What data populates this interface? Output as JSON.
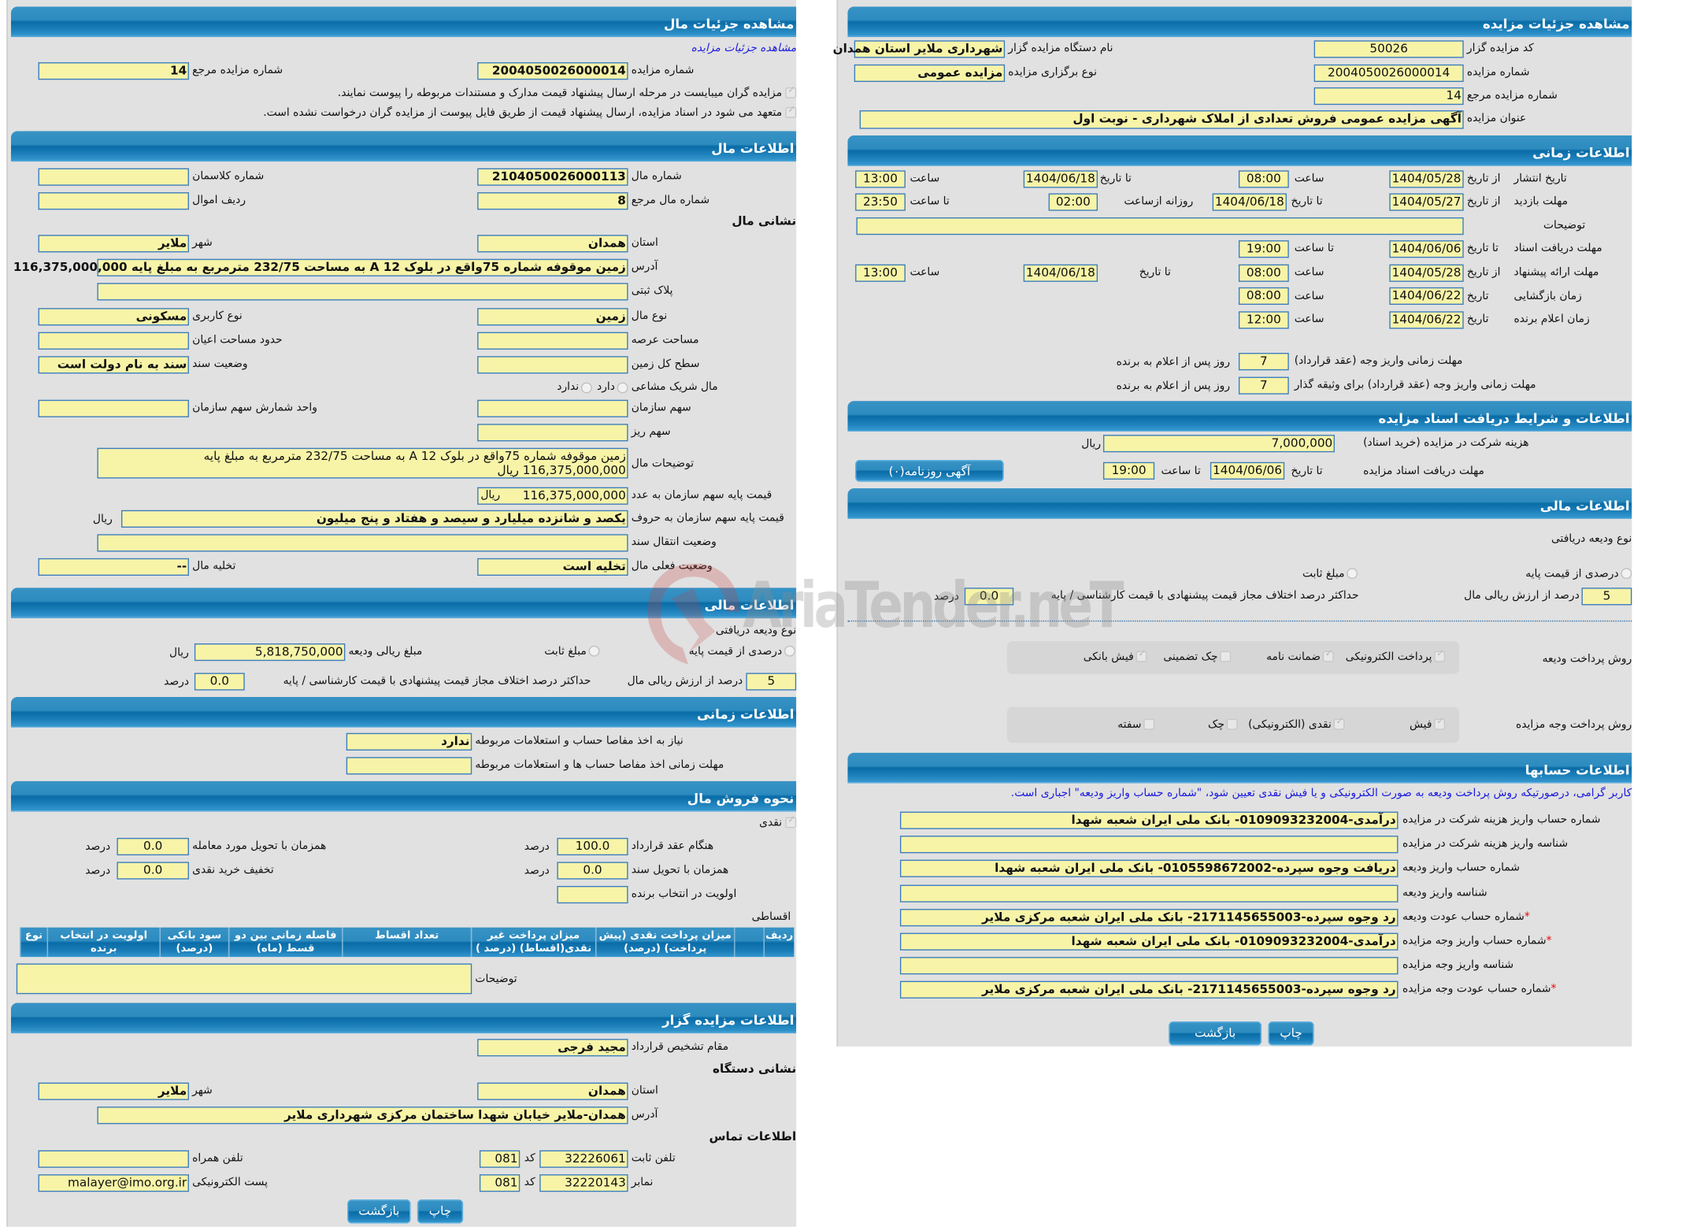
{
  "left": {
    "title": "مشاهده جزئیات مال",
    "auction_link": "مشاهده جزئیات مزایده",
    "auction_number": {
      "label": "شماره مزایده",
      "value": "2004050026000014"
    },
    "auction_ref": {
      "label": "شماره مزایده مرجع",
      "value": "14"
    },
    "notes": [
      "مزایده گران میبایست در مرحله ارسال پیشنهاد قیمت مدارک و مستندات مربوطه را پیوست نمایند.",
      "متعهد می شود در اسناد مزایده، ارسال پیشنهاد قیمت از طریق فایل پیوست از مزایده گران درخواست نشده است."
    ],
    "asset": {
      "title": "اطلاعات مال",
      "number": {
        "label": "شماره مال",
        "value": "2104050026000113"
      },
      "class_number": {
        "label": "شماره کلاسمان",
        "value": ""
      },
      "ref_number": {
        "label": "شماره مال مرجع",
        "value": "8"
      },
      "row": {
        "label": "ردیف اموال",
        "value": ""
      },
      "address_title": "نشانی مال",
      "province": {
        "label": "استان",
        "value": "همدان"
      },
      "city": {
        "label": "شهر",
        "value": "ملایر"
      },
      "address": {
        "label": "آدرس",
        "value": "زمین موقوفه شماره 75واقع در بلوک 12 A به مساحت 232/75 مترمربع به مبلغ پایه 116,375,000,000"
      },
      "registration_plate": {
        "label": "پلاک ثبتی",
        "value": ""
      },
      "asset_type": {
        "label": "نوع مال",
        "value": "زمین"
      },
      "usage_type": {
        "label": "نوع کاربری",
        "value": "مسکونی"
      },
      "land_area": {
        "label": "مساحت عرصه",
        "value": ""
      },
      "building_area": {
        "label": "حدود مساحت اعیان",
        "value": ""
      },
      "total_area": {
        "label": "سطح کل زمین",
        "value": ""
      },
      "deed_status": {
        "label": "وضعیت سند",
        "value": "سند به نام دولت است"
      },
      "shared": {
        "label": "مال شریک مشاعی",
        "options": [
          "دارد",
          "ندارد"
        ]
      },
      "org_share": {
        "label": "سهم سازمان",
        "value": ""
      },
      "share_unit": {
        "label": "واحد شمارش سهم سازمان",
        "value": ""
      },
      "fine_share": {
        "label": "سهم ریز",
        "value": ""
      },
      "description": {
        "label": "توضیحات مال",
        "value": "زمین موقوفه شماره 75واقع در بلوک 12 A به مساحت 232/75 مترمربع به مبلغ پایه 116,375,000,000 ریال"
      },
      "base_price_number": {
        "label": "قیمت پایه سهم سازمان به عدد",
        "value": "116,375,000,000"
      },
      "base_price_words": {
        "label": "قیمت پایه سهم سازمان به حروف",
        "value": "یکصد و شانزده میلیارد و سیصد و هفتاد و پنج میلیون"
      },
      "currency": "ریال",
      "deed_transfer": {
        "label": "وضعیت انتقال سند",
        "value": ""
      },
      "current_status": {
        "label": "وضعیت فعلی مال",
        "value": "تخلیه است"
      },
      "evacuation": {
        "label": "تخلیه مال",
        "value": "--"
      }
    },
    "finance": {
      "title": "اطلاعات مالی",
      "deposit_type_label": "نوع ودیعه دریافتی",
      "opt_percent": "درصدی از قیمت پایه",
      "opt_fixed": "مبلغ ثابت",
      "deposit_amount": {
        "label": "مبلغ ریالی ودیعه",
        "value": "5,818,750,000"
      },
      "currency": "ریال",
      "percent": {
        "label": "درصد از ارزش ریالی مال",
        "value": "5"
      },
      "max_diff": {
        "label": "حداکثر درصد اختلاف مجاز قیمت پیشنهادی با قیمت کارشناسی / پایه",
        "value": "0.0"
      },
      "unit": "درصد"
    },
    "timing": {
      "title": "اطلاعات زمانی",
      "clearance": {
        "label": "نیاز به اخذ مفاصا حساب و استعلامات مربوطه",
        "value": "ندارد"
      },
      "clearance_deadline": {
        "label": "مهلت زمانی اخذ مفاصا حساب ها و استعلامات مربوطه",
        "value": ""
      }
    },
    "sale": {
      "title": "نحوه فروش مال",
      "cash": "نقدی",
      "at_contract": {
        "label": "هنگام عقد قرارداد",
        "value": "100.0"
      },
      "with_delivery": {
        "label": "همزمان با تحویل مورد معامله",
        "value": "0.0"
      },
      "with_deed": {
        "label": "همزمان با تحویل سند",
        "value": "0.0"
      },
      "discount": {
        "label": "تخفیف خرید نقدی",
        "value": "0.0"
      },
      "priority": {
        "label": "اولویت در انتخاب برنده",
        "value": ""
      },
      "unit": "درصد",
      "installment": "اقساطی",
      "table_headers": [
        "ردیف",
        "",
        "میزان پرداخت نقدی (پیش پرداخت) (درصد)",
        "میزان پرداخت غیر نقدی(اقساط) (درصد )",
        "تعداد اقساط",
        "فاصله زمانی بین دو قسط (ماه)",
        "سود بانکی (درصد)",
        "اولویت در انتخاب برنده",
        "نوع"
      ],
      "notes": {
        "label": "توضیحات",
        "value": ""
      }
    },
    "auctioneer": {
      "title": "اطلاعات مزایده گزار",
      "authority": {
        "label": "مقام تشخیص قرارداد",
        "value": "مجید فرجی"
      },
      "address_title": "نشانی دستگاه",
      "province": {
        "label": "استان",
        "value": "همدان"
      },
      "city": {
        "label": "شهر",
        "value": "ملایر"
      },
      "address": {
        "label": "آدرس",
        "value": "همدان-ملایر خیابان شهدا ساختمان مرکزی شهرداری ملایر"
      },
      "contact_title": "اطلاعات تماس",
      "phone": {
        "label": "تلفن ثابت",
        "value": "32226061"
      },
      "code_label": "کد",
      "phone_code": "081",
      "mobile": {
        "label": "تلفن همراه",
        "value": ""
      },
      "fax": {
        "label": "نمابر",
        "value": "32220143"
      },
      "fax_code": "081",
      "email": {
        "label": "پست الکترونیکی",
        "value": "malayer@imo.org.ir"
      }
    },
    "buttons": {
      "print": "چاپ",
      "back": "بازگشت"
    }
  },
  "right": {
    "title": "مشاهده جزئیات مزایده",
    "org_code": {
      "label": "کد مزایده گزار",
      "value": "50026"
    },
    "org_name": {
      "label": "نام دستگاه مزایده گزار",
      "value": "شهرداری ملایر استان همدان"
    },
    "auction_number": {
      "label": "شماره مزایده",
      "value": "2004050026000014"
    },
    "auction_type": {
      "label": "نوع برگزاری مزایده",
      "value": "مزایده عمومی"
    },
    "auction_ref": {
      "label": "شماره مزایده مرجع",
      "value": "14"
    },
    "subject": {
      "label": "عنوان مزایده",
      "value": "آگهی مزایده عمومی فروش تعدادی از املاک شهرداری - نوبت اول"
    },
    "timing": {
      "title": "اطلاعات زمانی",
      "from_date": "از تاریخ",
      "to_date": "تا تاریخ",
      "date": "تاریخ",
      "time": "ساعت",
      "to_time": "تا ساعت",
      "daily_from": "روزانه ازساعت",
      "publish": {
        "label": "تاریخ انتشار",
        "from": "1404/05/28",
        "from_time": "08:00",
        "to": "1404/06/18",
        "to_time": "13:00"
      },
      "visit": {
        "label": "مهلت بازدید",
        "from": "1404/05/27",
        "to": "1404/06/18",
        "daily_from": "02:00",
        "to_time": "23:50"
      },
      "description": {
        "label": "توضیحات",
        "value": ""
      },
      "docs": {
        "label": "مهلت دریافت اسناد",
        "to": "1404/06/06",
        "to_time": "19:00"
      },
      "offer": {
        "label": "مهلت ارائه پیشنهاد",
        "from": "1404/05/28",
        "from_time": "08:00",
        "to": "1404/06/18",
        "to_time": "13:00"
      },
      "opening": {
        "label": "زمان بازگشایی",
        "date": "1404/06/22",
        "time": "08:00"
      },
      "winner": {
        "label": "زمان اعلام برنده",
        "date": "1404/06/22",
        "time": "12:00"
      },
      "pay_contract": {
        "label": "مهلت زمانی واریز وجه (عقد قرارداد)",
        "value": "7"
      },
      "pay_guarantor": {
        "label": "مهلت زمانی واریز وجه (عقد قرارداد) برای وثیقه گذار",
        "value": "7"
      },
      "days_suffix": "روز پس از اعلام به برنده"
    },
    "docs": {
      "title": "اطلاعات و شرایط دریافت اسناد مزایده",
      "fee": {
        "label": "هزینه شرکت در مزایده (خرید اسناد)",
        "value": "7,000,000"
      },
      "currency": "ریال",
      "deadline": {
        "label": "مهلت دریافت اسناد مزایده",
        "to": "1404/06/06",
        "to_time": "19:00"
      },
      "to_date": "تا تاریخ",
      "to_time": "تا ساعت",
      "newspaper_button": "آگهی روزنامه(۰)"
    },
    "finance": {
      "title": "اطلاعات مالی",
      "deposit_type_label": "نوع ودیعه دریافتی",
      "opt_percent": "درصدی از قیمت پایه",
      "opt_fixed": "مبلغ ثابت",
      "percent": {
        "label": "درصد از ارزش ریالی مال",
        "value": "5"
      },
      "max_diff": {
        "label": "حداکثر درصد اختلاف مجاز قیمت پیشنهادی با قیمت کارشناسی / پایه",
        "value": "0.0"
      },
      "unit": "درصد",
      "deposit_methods": {
        "label": "روش پرداخت ودیعه",
        "items": [
          {
            "label": "پرداخت الکترونیکی",
            "checked": true
          },
          {
            "label": "ضمانت نامه",
            "checked": true
          },
          {
            "label": "چک تضمینی",
            "checked": false
          },
          {
            "label": "فیش بانکی",
            "checked": true
          }
        ]
      },
      "payment_methods": {
        "label": "روش پرداخت وجه مزایده",
        "items": [
          {
            "label": "فیش",
            "checked": true
          },
          {
            "label": "نقدی (الکترونیکی)",
            "checked": true
          },
          {
            "label": "چک",
            "checked": false
          },
          {
            "label": "سفته",
            "checked": false
          }
        ]
      }
    },
    "accounts": {
      "title": "اطلاعات حسابها",
      "notice": "کاربر گرامی، درصورتیکه روش پرداخت ودیعه به صورت الکترونیکی و یا فیش نقدی تعیین شود، \"شماره حساب واریز ودیعه\" اجباری است.",
      "required_mark": "*",
      "rows": [
        {
          "label": "شماره حساب واریز هزینه شرکت در مزایده",
          "value": "درآمدی-0109093232004- بانک ملی ایران شعبه شهدا",
          "required": false
        },
        {
          "label": "شناسه واریز هزینه شرکت در مزایده",
          "value": "",
          "required": false
        },
        {
          "label": "شماره حساب واریز ودیعه",
          "value": "دریافت وجوه سپرده-0105598672002- بانک ملی ایران شعبه شهدا",
          "required": false
        },
        {
          "label": "شناسه واریز ودیعه",
          "value": "",
          "required": false
        },
        {
          "label": "شماره حساب عودت ودیعه",
          "value": "رد وجوه سپرده-2171145655003- بانک ملی ایران شعبه مرکزی ملایر",
          "required": true
        },
        {
          "label": "شماره حساب واریز وجه مزایده",
          "value": "درآمدی-0109093232004- بانک ملی ایران شعبه شهدا",
          "required": true
        },
        {
          "label": "شناسه واریز وجه مزایده",
          "value": "",
          "required": false
        },
        {
          "label": "شماره حساب عودت وجه مزایده",
          "value": "رد وجوه سپرده-2171145655003- بانک ملی ایران شعبه مرکزی ملایر",
          "required": true
        }
      ]
    },
    "buttons": {
      "print": "چاپ",
      "back": "بازگشت"
    }
  },
  "watermark": "AriaTender.neT",
  "colors": {
    "header": "#0a6ca7",
    "field_bg": "#f7f4a8",
    "field_border": "#3b7cc0",
    "panel_bg": "#e1e1e1",
    "link": "#2020e0"
  }
}
